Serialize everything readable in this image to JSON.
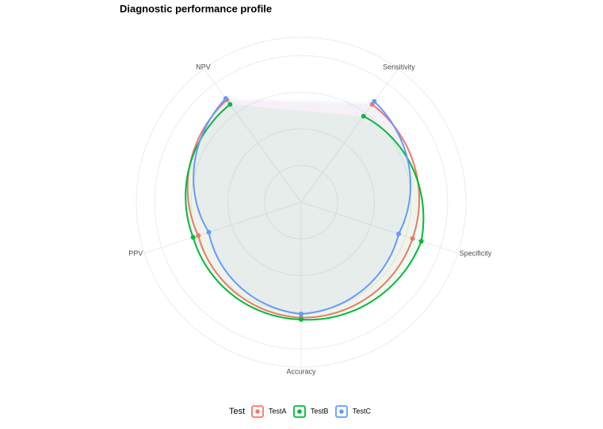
{
  "chart_data": {
    "type": "radar",
    "title": "Diagnostic performance profile",
    "categories": [
      "Sensitivity",
      "Specificity",
      "Accuracy",
      "PPV",
      "NPV"
    ],
    "series": [
      {
        "name": "TestA",
        "color": "#F8766D",
        "values": [
          0.66,
          0.64,
          0.63,
          0.59,
          0.69
        ]
      },
      {
        "name": "TestB",
        "color": "#00BA38",
        "values": [
          0.58,
          0.69,
          0.64,
          0.62,
          0.66
        ]
      },
      {
        "name": "TestC",
        "color": "#619CFF",
        "values": [
          0.68,
          0.56,
          0.61,
          0.53,
          0.7
        ]
      }
    ],
    "ylim": [
      0,
      0.9
    ],
    "yticks": [
      0.2,
      0.4,
      0.6,
      0.8
    ],
    "grid": true,
    "legend_title": "Test",
    "legend_position": "bottom"
  }
}
